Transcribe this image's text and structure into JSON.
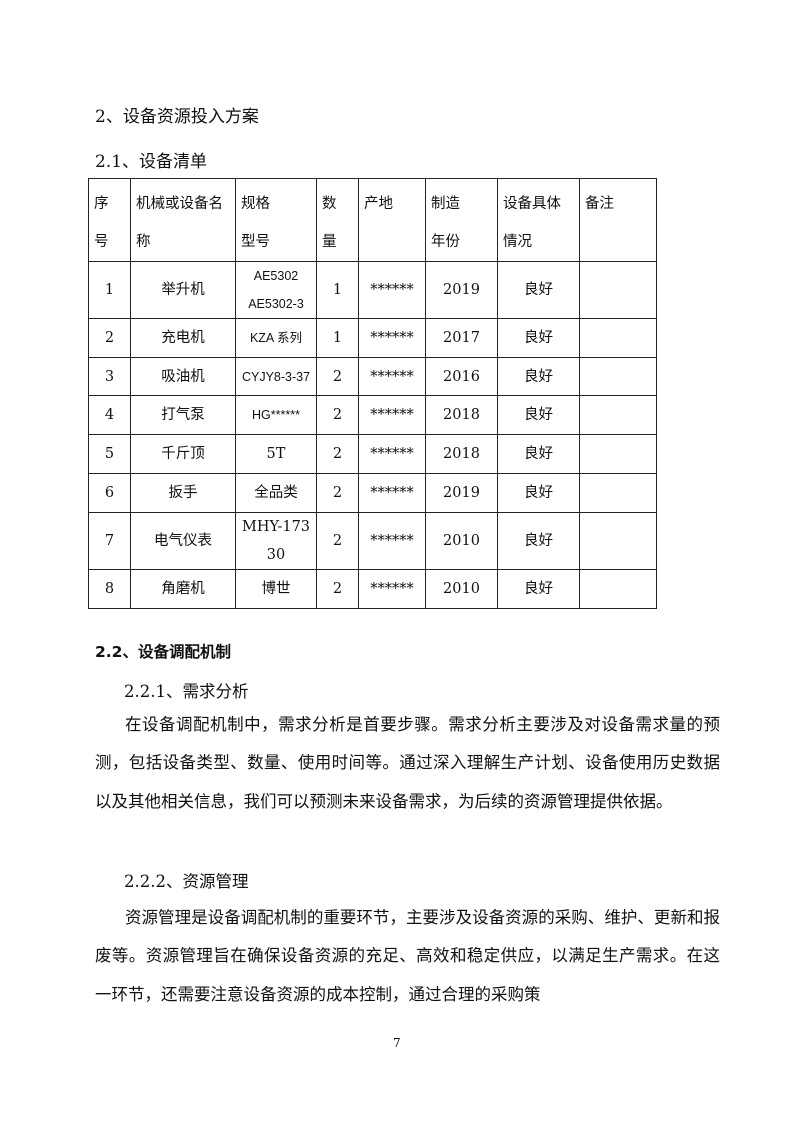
{
  "heading_main": "2、设备资源投入方案",
  "heading_21": "2.1、设备清单",
  "table": {
    "headers": [
      [
        "序",
        "号"
      ],
      [
        "机械或设备名",
        "称"
      ],
      [
        "规格",
        "型号"
      ],
      [
        "数",
        "量"
      ],
      [
        "产地",
        ""
      ],
      [
        "制造",
        "年份"
      ],
      [
        "设备具体",
        "情况"
      ],
      [
        "备注",
        ""
      ]
    ],
    "rows": [
      {
        "no": "1",
        "name": "举升机",
        "model": [
          "AE5302",
          "AE5302-3"
        ],
        "qty": "1",
        "origin": "******",
        "year": "2019",
        "condition": "良好",
        "note": ""
      },
      {
        "no": "2",
        "name": "充电机",
        "model": [
          "KZA 系列"
        ],
        "qty": "1",
        "origin": "******",
        "year": "2017",
        "condition": "良好",
        "note": ""
      },
      {
        "no": "3",
        "name": "吸油机",
        "model": [
          "CYJY8-3-37"
        ],
        "qty": "2",
        "origin": "******",
        "year": "2016",
        "condition": "良好",
        "note": ""
      },
      {
        "no": "4",
        "name": "打气泵",
        "model": [
          "HG******"
        ],
        "qty": "2",
        "origin": "******",
        "year": "2018",
        "condition": "良好",
        "note": ""
      },
      {
        "no": "5",
        "name": "千斤顶",
        "model": [
          "5T"
        ],
        "qty": "2",
        "origin": "******",
        "year": "2018",
        "condition": "良好",
        "note": ""
      },
      {
        "no": "6",
        "name": "扳手",
        "model": [
          "全品类"
        ],
        "qty": "2",
        "origin": "******",
        "year": "2019",
        "condition": "良好",
        "note": ""
      },
      {
        "no": "7",
        "name": "电气仪表",
        "model": [
          "MHY-173",
          "30"
        ],
        "qty": "2",
        "origin": "******",
        "year": "2010",
        "condition": "良好",
        "note": ""
      },
      {
        "no": "8",
        "name": "角磨机",
        "model": [
          "博世"
        ],
        "qty": "2",
        "origin": "******",
        "year": "2010",
        "condition": "良好",
        "note": ""
      }
    ]
  },
  "heading_22": "2.2、设备调配机制",
  "heading_221": "2.2.1、需求分析",
  "para_221": "在设备调配机制中，需求分析是首要步骤。需求分析主要涉及对设备需求量的预测，包括设备类型、数量、使用时间等。通过深入理解生产计划、设备使用历史数据以及其他相关信息，我们可以预测未来设备需求，为后续的资源管理提供依据。",
  "heading_222": "2.2.2、资源管理",
  "para_222": "资源管理是设备调配机制的重要环节，主要涉及设备资源的采购、维护、更新和报废等。资源管理旨在确保设备资源的充足、高效和稳定供应，以满足生产需求。在这一环节，还需要注意设备资源的成本控制，通过合理的采购策",
  "page_number": "7"
}
